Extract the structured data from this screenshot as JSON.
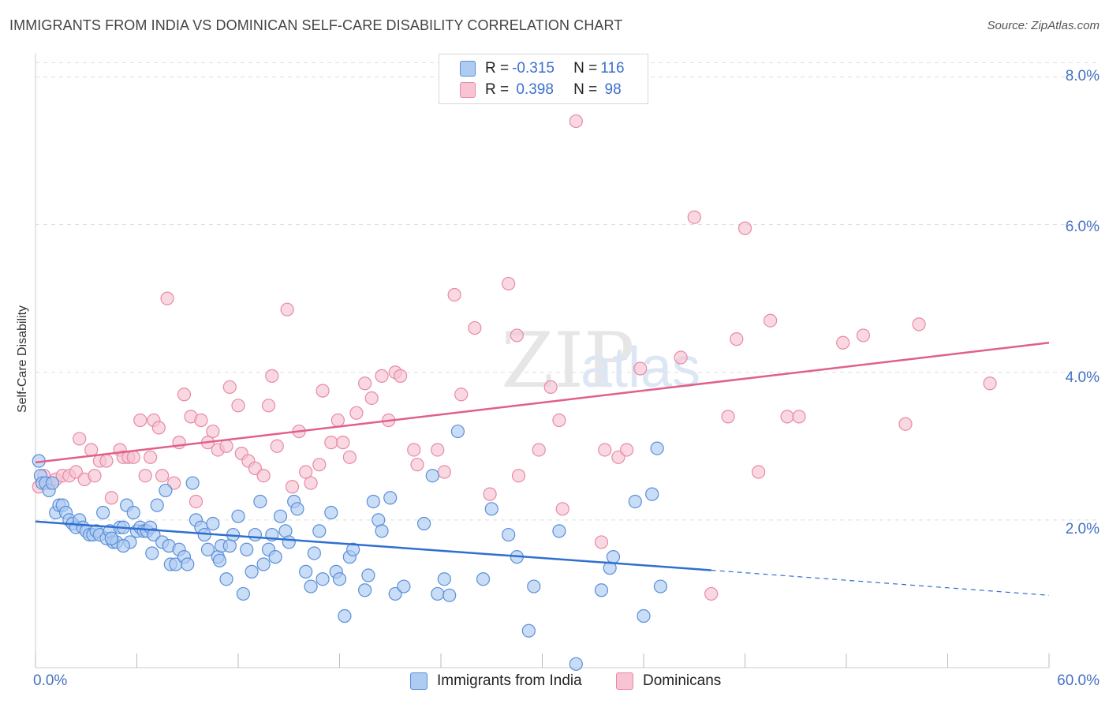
{
  "header": {
    "title": "IMMIGRANTS FROM INDIA VS DOMINICAN SELF-CARE DISABILITY CORRELATION CHART",
    "source": "Source: ZipAtlas.com"
  },
  "legend_top": {
    "rows": [
      {
        "r_label": "R = ",
        "r_value": "-0.315",
        "n_label": "N = ",
        "n_value": "116"
      },
      {
        "r_label": "R = ",
        "r_value": " 0.398",
        "n_label": "N = ",
        "n_value": " 98"
      }
    ]
  },
  "colors": {
    "india_fill": "#aecbf2",
    "india_stroke": "#5a8fd8",
    "india_line": "#2f6fd0",
    "dominican_fill": "#f8c3d3",
    "dominican_stroke": "#e68aa6",
    "dominican_line": "#e0608a",
    "grid": "#dddddd",
    "tick_text": "#4472c4"
  },
  "chart_data": {
    "type": "scatter",
    "title": "IMMIGRANTS FROM INDIA VS DOMINICAN SELF-CARE DISABILITY CORRELATION CHART",
    "xlabel": "",
    "ylabel": "Self-Care Disability",
    "xlim": [
      0,
      60
    ],
    "ylim": [
      0,
      8.4
    ],
    "y_ticks": [
      2,
      4,
      6,
      8
    ],
    "y_tick_labels": [
      "2.0%",
      "4.0%",
      "6.0%",
      "8.0%"
    ],
    "x_tick_labels": [
      "0.0%",
      "60.0%"
    ],
    "grid": true,
    "legend_position": "bottom",
    "watermark": "ZIPatlas",
    "series": [
      {
        "name": "Immigrants from India",
        "r": -0.315,
        "n": 116,
        "trend": {
          "x0": 0,
          "y0": 1.98,
          "x1": 40,
          "y1": 1.32,
          "dash_x1": 60,
          "dash_y1": 0.98
        },
        "points": [
          [
            0.2,
            2.8
          ],
          [
            0.3,
            2.6
          ],
          [
            0.4,
            2.5
          ],
          [
            0.6,
            2.5
          ],
          [
            0.8,
            2.4
          ],
          [
            1.0,
            2.5
          ],
          [
            1.2,
            2.1
          ],
          [
            1.4,
            2.2
          ],
          [
            1.6,
            2.2
          ],
          [
            1.8,
            2.1
          ],
          [
            2.0,
            2.0
          ],
          [
            2.2,
            1.95
          ],
          [
            2.4,
            1.9
          ],
          [
            2.6,
            2.0
          ],
          [
            2.8,
            1.9
          ],
          [
            3.0,
            1.85
          ],
          [
            3.2,
            1.8
          ],
          [
            3.4,
            1.8
          ],
          [
            3.6,
            1.85
          ],
          [
            3.8,
            1.8
          ],
          [
            4.0,
            2.1
          ],
          [
            4.2,
            1.75
          ],
          [
            4.4,
            1.85
          ],
          [
            4.6,
            1.7
          ],
          [
            4.8,
            1.7
          ],
          [
            5.0,
            1.9
          ],
          [
            5.2,
            1.9
          ],
          [
            5.4,
            2.2
          ],
          [
            5.6,
            1.7
          ],
          [
            5.8,
            2.1
          ],
          [
            6.0,
            1.85
          ],
          [
            6.2,
            1.9
          ],
          [
            6.4,
            1.85
          ],
          [
            6.6,
            1.85
          ],
          [
            6.8,
            1.9
          ],
          [
            7.0,
            1.8
          ],
          [
            7.2,
            2.2
          ],
          [
            7.5,
            1.7
          ],
          [
            7.7,
            2.4
          ],
          [
            7.9,
            1.65
          ],
          [
            8.0,
            1.4
          ],
          [
            8.3,
            1.4
          ],
          [
            8.5,
            1.6
          ],
          [
            8.8,
            1.5
          ],
          [
            9.0,
            1.4
          ],
          [
            9.3,
            2.5
          ],
          [
            9.5,
            2.0
          ],
          [
            9.8,
            1.9
          ],
          [
            10.0,
            1.8
          ],
          [
            10.2,
            1.6
          ],
          [
            10.5,
            1.95
          ],
          [
            10.8,
            1.5
          ],
          [
            11.0,
            1.65
          ],
          [
            11.3,
            1.2
          ],
          [
            11.5,
            1.65
          ],
          [
            11.7,
            1.8
          ],
          [
            12.0,
            2.05
          ],
          [
            12.3,
            1.0
          ],
          [
            12.5,
            1.6
          ],
          [
            12.8,
            1.3
          ],
          [
            13.0,
            1.8
          ],
          [
            13.3,
            2.25
          ],
          [
            13.5,
            1.4
          ],
          [
            13.8,
            1.6
          ],
          [
            14.0,
            1.8
          ],
          [
            14.2,
            1.5
          ],
          [
            14.5,
            2.05
          ],
          [
            14.8,
            1.85
          ],
          [
            15.0,
            1.7
          ],
          [
            15.3,
            2.25
          ],
          [
            15.5,
            2.15
          ],
          [
            16.0,
            1.3
          ],
          [
            16.3,
            1.1
          ],
          [
            16.5,
            1.55
          ],
          [
            16.8,
            1.85
          ],
          [
            17.0,
            1.2
          ],
          [
            17.5,
            2.1
          ],
          [
            17.8,
            1.3
          ],
          [
            18.0,
            1.2
          ],
          [
            18.3,
            0.7
          ],
          [
            18.6,
            1.5
          ],
          [
            18.8,
            1.6
          ],
          [
            19.5,
            1.05
          ],
          [
            19.7,
            1.25
          ],
          [
            20.0,
            2.25
          ],
          [
            20.3,
            2.0
          ],
          [
            20.5,
            1.85
          ],
          [
            21.0,
            2.3
          ],
          [
            21.3,
            1.0
          ],
          [
            21.8,
            1.1
          ],
          [
            23.0,
            1.95
          ],
          [
            23.5,
            2.6
          ],
          [
            23.8,
            1.0
          ],
          [
            24.2,
            1.2
          ],
          [
            24.5,
            0.98
          ],
          [
            25.0,
            3.2
          ],
          [
            26.5,
            1.2
          ],
          [
            27.0,
            2.15
          ],
          [
            28.0,
            1.8
          ],
          [
            28.5,
            1.5
          ],
          [
            29.2,
            0.5
          ],
          [
            29.5,
            1.1
          ],
          [
            31.0,
            1.85
          ],
          [
            32.0,
            0.05
          ],
          [
            33.5,
            1.05
          ],
          [
            34.0,
            1.35
          ],
          [
            34.2,
            1.5
          ],
          [
            35.5,
            2.25
          ],
          [
            36.0,
            0.7
          ],
          [
            36.5,
            2.35
          ],
          [
            36.8,
            2.97
          ],
          [
            37.0,
            1.1
          ],
          [
            4.5,
            1.75
          ],
          [
            5.2,
            1.65
          ],
          [
            6.9,
            1.55
          ],
          [
            10.9,
            1.45
          ]
        ]
      },
      {
        "name": "Dominicans",
        "r": 0.398,
        "n": 98,
        "trend": {
          "x0": 0,
          "y0": 2.78,
          "x1": 60,
          "y1": 4.4
        },
        "points": [
          [
            0.2,
            2.45
          ],
          [
            0.5,
            2.6
          ],
          [
            0.8,
            2.5
          ],
          [
            1.2,
            2.55
          ],
          [
            1.6,
            2.6
          ],
          [
            2.0,
            2.6
          ],
          [
            2.4,
            2.65
          ],
          [
            2.6,
            3.1
          ],
          [
            2.9,
            2.55
          ],
          [
            3.3,
            2.95
          ],
          [
            3.5,
            2.6
          ],
          [
            3.8,
            2.8
          ],
          [
            4.2,
            2.8
          ],
          [
            4.5,
            2.3
          ],
          [
            5.0,
            2.95
          ],
          [
            5.2,
            2.85
          ],
          [
            5.5,
            2.85
          ],
          [
            5.8,
            2.85
          ],
          [
            6.2,
            3.35
          ],
          [
            6.5,
            2.6
          ],
          [
            6.8,
            2.85
          ],
          [
            7.0,
            3.35
          ],
          [
            7.3,
            3.25
          ],
          [
            7.5,
            2.6
          ],
          [
            7.8,
            5.0
          ],
          [
            8.2,
            2.5
          ],
          [
            8.5,
            3.05
          ],
          [
            8.8,
            3.7
          ],
          [
            9.2,
            3.4
          ],
          [
            9.5,
            2.25
          ],
          [
            9.8,
            3.35
          ],
          [
            10.2,
            3.05
          ],
          [
            10.5,
            3.2
          ],
          [
            10.8,
            2.95
          ],
          [
            11.3,
            3.0
          ],
          [
            11.5,
            3.8
          ],
          [
            12.0,
            3.55
          ],
          [
            12.2,
            2.9
          ],
          [
            12.6,
            2.8
          ],
          [
            13.0,
            2.7
          ],
          [
            13.5,
            2.6
          ],
          [
            13.8,
            3.55
          ],
          [
            14.0,
            3.95
          ],
          [
            14.3,
            3.0
          ],
          [
            14.9,
            4.85
          ],
          [
            15.2,
            2.45
          ],
          [
            15.6,
            3.2
          ],
          [
            16.0,
            2.65
          ],
          [
            16.3,
            2.5
          ],
          [
            16.8,
            2.75
          ],
          [
            17.0,
            3.75
          ],
          [
            17.5,
            3.05
          ],
          [
            17.9,
            3.35
          ],
          [
            18.2,
            3.05
          ],
          [
            18.6,
            2.85
          ],
          [
            19.0,
            3.45
          ],
          [
            19.5,
            3.85
          ],
          [
            19.9,
            3.65
          ],
          [
            20.5,
            3.95
          ],
          [
            20.9,
            3.35
          ],
          [
            21.3,
            4.0
          ],
          [
            21.6,
            3.95
          ],
          [
            22.4,
            2.95
          ],
          [
            22.6,
            2.75
          ],
          [
            23.8,
            2.95
          ],
          [
            24.2,
            2.65
          ],
          [
            24.8,
            5.05
          ],
          [
            25.2,
            3.7
          ],
          [
            26.0,
            4.6
          ],
          [
            26.9,
            2.35
          ],
          [
            28.0,
            5.2
          ],
          [
            28.5,
            4.5
          ],
          [
            28.6,
            2.6
          ],
          [
            29.8,
            2.95
          ],
          [
            30.5,
            3.8
          ],
          [
            31.0,
            3.35
          ],
          [
            31.2,
            2.15
          ],
          [
            32.0,
            7.4
          ],
          [
            33.5,
            1.7
          ],
          [
            33.7,
            2.95
          ],
          [
            34.5,
            2.85
          ],
          [
            35.0,
            2.95
          ],
          [
            35.8,
            4.05
          ],
          [
            38.2,
            4.2
          ],
          [
            39.0,
            6.1
          ],
          [
            40.0,
            1.0
          ],
          [
            41.0,
            3.4
          ],
          [
            41.5,
            4.45
          ],
          [
            42.0,
            5.95
          ],
          [
            42.8,
            2.65
          ],
          [
            43.5,
            4.7
          ],
          [
            44.5,
            3.4
          ],
          [
            45.2,
            3.4
          ],
          [
            47.8,
            4.4
          ],
          [
            49.0,
            4.5
          ],
          [
            51.5,
            3.3
          ],
          [
            52.3,
            4.65
          ],
          [
            56.5,
            3.85
          ]
        ]
      }
    ]
  },
  "axis": {
    "y_ticks": [
      "2.0%",
      "4.0%",
      "6.0%",
      "8.0%"
    ],
    "x_min_label": "0.0%",
    "x_max_label": "60.0%",
    "y_label": "Self-Care Disability"
  },
  "legend_bottom": {
    "items": [
      {
        "label": "Immigrants from India"
      },
      {
        "label": "Dominicans"
      }
    ]
  }
}
